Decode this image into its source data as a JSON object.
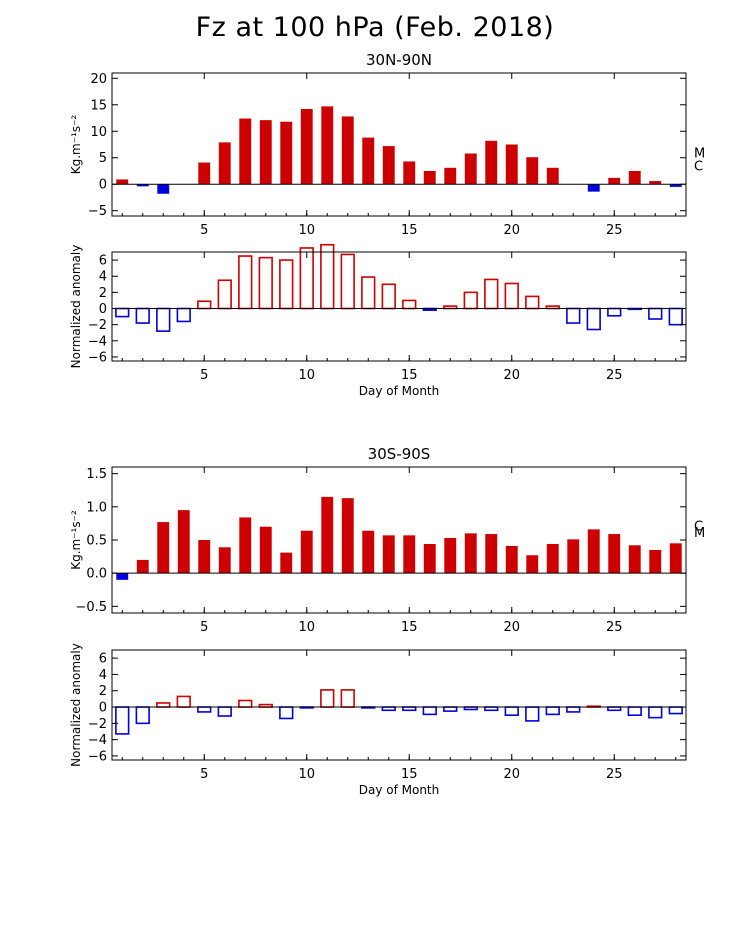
{
  "title": "Fz at 100 hPa (Feb. 2018)",
  "colors": {
    "positive": "#cc0000",
    "negative": "#0000dd",
    "axis": "#000000"
  },
  "chart_data": [
    {
      "type": "bar",
      "subtitle": "30N-90N",
      "ylabel": "Kg.m⁻¹s⁻²",
      "xlabel": "",
      "ylim": [
        -6,
        21
      ],
      "yticks": [
        -5,
        0,
        5,
        10,
        15,
        20
      ],
      "xticks": [
        5,
        10,
        15,
        20,
        25
      ],
      "fill": "solid",
      "x": [
        1,
        2,
        3,
        4,
        5,
        6,
        7,
        8,
        9,
        10,
        11,
        12,
        13,
        14,
        15,
        16,
        17,
        18,
        19,
        20,
        21,
        22,
        23,
        24,
        25,
        26,
        27,
        28
      ],
      "values": [
        0.9,
        -0.4,
        -1.8,
        0.0,
        4.1,
        7.9,
        12.4,
        12.1,
        11.8,
        14.2,
        14.7,
        12.8,
        8.8,
        7.2,
        4.3,
        2.5,
        3.1,
        5.8,
        8.2,
        7.5,
        5.1,
        3.1,
        0.0,
        -1.4,
        1.2,
        2.5,
        0.6,
        -0.5
      ],
      "markers": [
        {
          "label": "M",
          "value": 6.0
        },
        {
          "label": "C",
          "value": 3.5
        }
      ]
    },
    {
      "type": "bar",
      "subtitle": "",
      "ylabel": "Normalized anomaly",
      "xlabel": "Day of Month",
      "ylim": [
        -6.5,
        7
      ],
      "yticks": [
        -6,
        -4,
        -2,
        0,
        2,
        4,
        6
      ],
      "xticks": [
        5,
        10,
        15,
        20,
        25
      ],
      "fill": "outline",
      "x": [
        1,
        2,
        3,
        4,
        5,
        6,
        7,
        8,
        9,
        10,
        11,
        12,
        13,
        14,
        15,
        16,
        17,
        18,
        19,
        20,
        21,
        22,
        23,
        24,
        25,
        26,
        27,
        28
      ],
      "values": [
        -1.0,
        -1.8,
        -2.8,
        -1.6,
        0.9,
        3.5,
        6.5,
        6.3,
        6.0,
        7.5,
        7.9,
        6.7,
        3.9,
        3.0,
        1.0,
        -0.2,
        0.3,
        2.0,
        3.6,
        3.1,
        1.5,
        0.3,
        -1.8,
        -2.6,
        -0.9,
        -0.1,
        -1.3,
        -2.0
      ]
    },
    {
      "type": "bar",
      "subtitle": "30S-90S",
      "ylabel": "Kg.m⁻¹s⁻²",
      "xlabel": "",
      "ylim": [
        -0.6,
        1.6
      ],
      "yticks": [
        -0.5,
        0.0,
        0.5,
        1.0,
        1.5
      ],
      "ytick_labels": [
        "−0.5",
        "0.0",
        "0.5",
        "1.0",
        "1.5"
      ],
      "xticks": [
        5,
        10,
        15,
        20,
        25
      ],
      "fill": "solid",
      "x": [
        1,
        2,
        3,
        4,
        5,
        6,
        7,
        8,
        9,
        10,
        11,
        12,
        13,
        14,
        15,
        16,
        17,
        18,
        19,
        20,
        21,
        22,
        23,
        24,
        25,
        26,
        27,
        28
      ],
      "values": [
        -0.1,
        0.2,
        0.77,
        0.95,
        0.5,
        0.39,
        0.84,
        0.7,
        0.31,
        0.64,
        1.15,
        1.13,
        0.64,
        0.57,
        0.57,
        0.44,
        0.53,
        0.6,
        0.59,
        0.41,
        0.27,
        0.44,
        0.51,
        0.66,
        0.59,
        0.42,
        0.35,
        0.45
      ],
      "markers": [
        {
          "label": "C",
          "value": 0.72
        },
        {
          "label": "M",
          "value": 0.62
        }
      ]
    },
    {
      "type": "bar",
      "subtitle": "",
      "ylabel": "Normalized anomaly",
      "xlabel": "Day of Month",
      "ylim": [
        -6.5,
        7
      ],
      "yticks": [
        -6,
        -4,
        -2,
        0,
        2,
        4,
        6
      ],
      "xticks": [
        5,
        10,
        15,
        20,
        25
      ],
      "fill": "outline",
      "x": [
        1,
        2,
        3,
        4,
        5,
        6,
        7,
        8,
        9,
        10,
        11,
        12,
        13,
        14,
        15,
        16,
        17,
        18,
        19,
        20,
        21,
        22,
        23,
        24,
        25,
        26,
        27,
        28
      ],
      "values": [
        -3.3,
        -2.0,
        0.5,
        1.3,
        -0.6,
        -1.1,
        0.8,
        0.3,
        -1.4,
        -0.1,
        2.1,
        2.1,
        -0.1,
        -0.4,
        -0.4,
        -0.9,
        -0.5,
        -0.3,
        -0.4,
        -1.0,
        -1.7,
        -0.9,
        -0.6,
        0.1,
        -0.4,
        -1.0,
        -1.3,
        -0.8
      ]
    }
  ]
}
